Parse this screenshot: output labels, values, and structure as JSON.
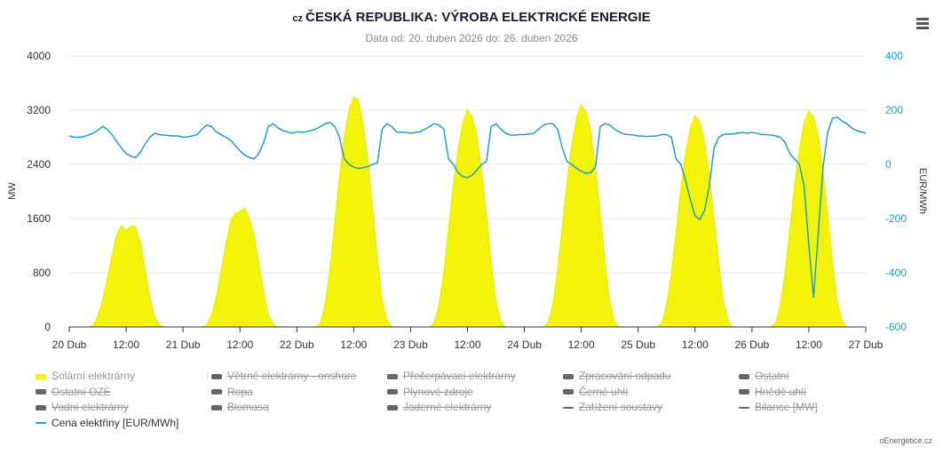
{
  "header": {
    "country_code": "cz",
    "title": "ČESKÁ REPUBLIKA: VÝROBA ELEKTRICKÉ ENERGIE",
    "subtitle": "Data od: 20. duben 2026 do: 26. duben 2026"
  },
  "menu_icon": "hamburger-menu-icon",
  "credit": "oEnergetice.cz",
  "legend": [
    {
      "label": "Solární elektrárny",
      "color": "#f4f40a",
      "enabled": true,
      "kind": "area"
    },
    {
      "label": "Větrné elektrárny - onshore",
      "color": "#666666",
      "enabled": false,
      "kind": "area"
    },
    {
      "label": "Přečerpávací elektrárny",
      "color": "#666666",
      "enabled": false,
      "kind": "area"
    },
    {
      "label": "Zpracování odpadu",
      "color": "#666666",
      "enabled": false,
      "kind": "area"
    },
    {
      "label": "Ostatní",
      "color": "#666666",
      "enabled": false,
      "kind": "area"
    },
    {
      "label": "Ostatní OZE",
      "color": "#666666",
      "enabled": false,
      "kind": "area"
    },
    {
      "label": "Ropa",
      "color": "#666666",
      "enabled": false,
      "kind": "area"
    },
    {
      "label": "Plynové zdroje",
      "color": "#666666",
      "enabled": false,
      "kind": "area"
    },
    {
      "label": "Černé uhlí",
      "color": "#666666",
      "enabled": false,
      "kind": "area"
    },
    {
      "label": "Hnědé uhlí",
      "color": "#666666",
      "enabled": false,
      "kind": "area"
    },
    {
      "label": "Vodní elektrárny",
      "color": "#666666",
      "enabled": false,
      "kind": "area"
    },
    {
      "label": "Biomasa",
      "color": "#666666",
      "enabled": false,
      "kind": "area"
    },
    {
      "label": "Jaderné elektrárny",
      "color": "#666666",
      "enabled": false,
      "kind": "area"
    },
    {
      "label": "Zatížení soustavy",
      "color": "#666666",
      "enabled": false,
      "kind": "line"
    },
    {
      "label": "Bilance [MW]",
      "color": "#666666",
      "enabled": false,
      "kind": "line"
    },
    {
      "label": "Cena elektřiny [EUR/MWh]",
      "color": "#1fa0c6",
      "enabled": true,
      "kind": "line"
    }
  ],
  "chart_data": {
    "type": "area",
    "title": "ČESKÁ REPUBLIKA: VÝROBA ELEKTRICKÉ ENERGIE",
    "x_ticks": [
      "20 Dub",
      "12:00",
      "21 Dub",
      "12:00",
      "22 Dub",
      "12:00",
      "23 Dub",
      "12:00",
      "24 Dub",
      "12:00",
      "25 Dub",
      "12:00",
      "26 Dub",
      "12:00",
      "27 Dub"
    ],
    "x_unit": "hour index from 20 Dub 00:00",
    "x_range": [
      0,
      168
    ],
    "ylabel": "MW",
    "ylim": [
      0,
      4000
    ],
    "y_ticks": [
      "0",
      "800",
      "1600",
      "2400",
      "3200",
      "4000"
    ],
    "y2label": "EUR/MWh",
    "y2lim": [
      -600,
      400
    ],
    "y2_ticks": [
      "-600",
      "-400",
      "-200",
      "0",
      "200",
      "400"
    ],
    "grid": true,
    "series": [
      {
        "name": "Solární elektrárny",
        "axis": "left",
        "color": "#f4f40a",
        "values": [
          0,
          0,
          0,
          0,
          0,
          20,
          150,
          380,
          700,
          1050,
          1350,
          1500,
          1420,
          1490,
          1480,
          1250,
          850,
          450,
          150,
          30,
          0,
          0,
          0,
          0,
          0,
          0,
          0,
          0,
          0,
          30,
          170,
          430,
          800,
          1200,
          1550,
          1680,
          1700,
          1750,
          1600,
          1350,
          950,
          520,
          180,
          40,
          0,
          0,
          0,
          0,
          0,
          0,
          0,
          0,
          0,
          60,
          340,
          850,
          1530,
          2210,
          2790,
          3200,
          3400,
          3350,
          3000,
          2450,
          1770,
          1020,
          410,
          100,
          0,
          0,
          0,
          0,
          0,
          0,
          0,
          0,
          0,
          60,
          320,
          800,
          1440,
          2080,
          2620,
          3010,
          3200,
          3100,
          2820,
          2300,
          1660,
          960,
          380,
          90,
          0,
          0,
          0,
          0,
          0,
          0,
          0,
          0,
          0,
          60,
          330,
          820,
          1480,
          2130,
          2690,
          3080,
          3280,
          3180,
          2890,
          2360,
          1700,
          980,
          390,
          90,
          0,
          0,
          0,
          0,
          0,
          0,
          0,
          0,
          0,
          60,
          310,
          780,
          1400,
          2030,
          2560,
          2930,
          3120,
          3030,
          2750,
          2250,
          1620,
          940,
          370,
          90,
          0,
          0,
          0,
          0,
          0,
          0,
          0,
          0,
          0,
          60,
          320,
          800,
          1440,
          2080,
          2620,
          3010,
          3190,
          3100,
          2820,
          2300,
          1660,
          960,
          380,
          90,
          0,
          0,
          0,
          0,
          0
        ]
      },
      {
        "name": "Cena elektřiny [EUR/MWh]",
        "axis": "right",
        "color": "#1fa0c6",
        "values": [
          105,
          100,
          100,
          102,
          108,
          115,
          125,
          140,
          130,
          110,
          85,
          60,
          40,
          30,
          25,
          45,
          75,
          100,
          115,
          110,
          108,
          106,
          105,
          105,
          100,
          102,
          105,
          110,
          130,
          145,
          140,
          120,
          110,
          100,
          90,
          70,
          50,
          35,
          25,
          20,
          40,
          80,
          140,
          150,
          135,
          125,
          120,
          115,
          120,
          118,
          120,
          125,
          130,
          140,
          150,
          155,
          140,
          100,
          20,
          0,
          -10,
          -15,
          -12,
          -8,
          0,
          5,
          130,
          150,
          140,
          120,
          118,
          118,
          115,
          118,
          120,
          130,
          140,
          150,
          145,
          130,
          20,
          0,
          -30,
          -45,
          -49,
          -40,
          -20,
          0,
          10,
          140,
          150,
          130,
          115,
          108,
          108,
          110,
          110,
          112,
          115,
          130,
          145,
          150,
          150,
          130,
          60,
          10,
          0,
          -15,
          -25,
          -33,
          -30,
          -10,
          140,
          150,
          145,
          130,
          120,
          112,
          110,
          108,
          105,
          104,
          103,
          104,
          105,
          110,
          110,
          100,
          20,
          0,
          -60,
          -130,
          -190,
          -203,
          -170,
          -80,
          60,
          100,
          110,
          112,
          112,
          115,
          118,
          115,
          118,
          115,
          110,
          110,
          108,
          105,
          100,
          80,
          40,
          20,
          0,
          -80,
          -300,
          -492,
          -250,
          -10,
          120,
          170,
          174,
          160,
          150,
          135,
          125,
          120,
          115
        ]
      }
    ]
  }
}
